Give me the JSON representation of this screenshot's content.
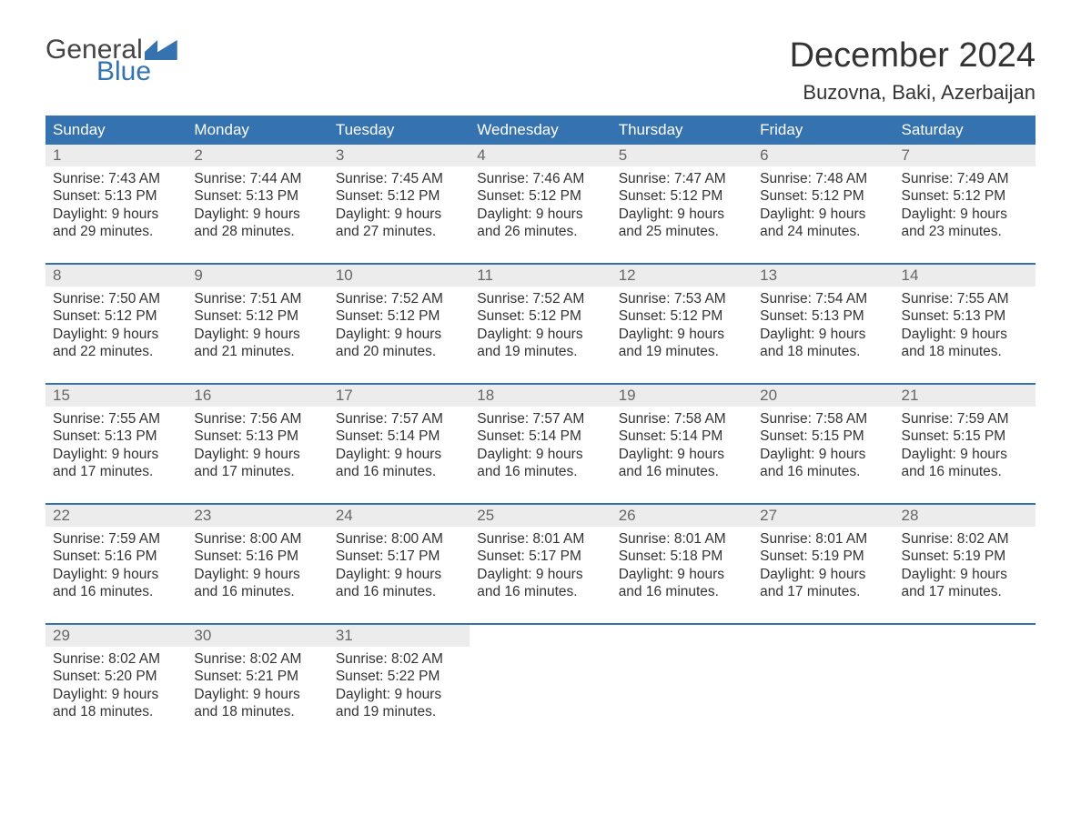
{
  "logo": {
    "word1": "General",
    "word2": "Blue"
  },
  "title": "December 2024",
  "location": "Buzovna, Baki, Azerbaijan",
  "colors": {
    "brand_blue": "#3572b0",
    "header_gray": "#ececec",
    "text": "#333333",
    "muted": "#666666",
    "white": "#ffffff"
  },
  "day_headers": [
    "Sunday",
    "Monday",
    "Tuesday",
    "Wednesday",
    "Thursday",
    "Friday",
    "Saturday"
  ],
  "weeks": [
    [
      {
        "n": "1",
        "sr": "Sunrise: 7:43 AM",
        "ss": "Sunset: 5:13 PM",
        "d1": "Daylight: 9 hours",
        "d2": "and 29 minutes."
      },
      {
        "n": "2",
        "sr": "Sunrise: 7:44 AM",
        "ss": "Sunset: 5:13 PM",
        "d1": "Daylight: 9 hours",
        "d2": "and 28 minutes."
      },
      {
        "n": "3",
        "sr": "Sunrise: 7:45 AM",
        "ss": "Sunset: 5:12 PM",
        "d1": "Daylight: 9 hours",
        "d2": "and 27 minutes."
      },
      {
        "n": "4",
        "sr": "Sunrise: 7:46 AM",
        "ss": "Sunset: 5:12 PM",
        "d1": "Daylight: 9 hours",
        "d2": "and 26 minutes."
      },
      {
        "n": "5",
        "sr": "Sunrise: 7:47 AM",
        "ss": "Sunset: 5:12 PM",
        "d1": "Daylight: 9 hours",
        "d2": "and 25 minutes."
      },
      {
        "n": "6",
        "sr": "Sunrise: 7:48 AM",
        "ss": "Sunset: 5:12 PM",
        "d1": "Daylight: 9 hours",
        "d2": "and 24 minutes."
      },
      {
        "n": "7",
        "sr": "Sunrise: 7:49 AM",
        "ss": "Sunset: 5:12 PM",
        "d1": "Daylight: 9 hours",
        "d2": "and 23 minutes."
      }
    ],
    [
      {
        "n": "8",
        "sr": "Sunrise: 7:50 AM",
        "ss": "Sunset: 5:12 PM",
        "d1": "Daylight: 9 hours",
        "d2": "and 22 minutes."
      },
      {
        "n": "9",
        "sr": "Sunrise: 7:51 AM",
        "ss": "Sunset: 5:12 PM",
        "d1": "Daylight: 9 hours",
        "d2": "and 21 minutes."
      },
      {
        "n": "10",
        "sr": "Sunrise: 7:52 AM",
        "ss": "Sunset: 5:12 PM",
        "d1": "Daylight: 9 hours",
        "d2": "and 20 minutes."
      },
      {
        "n": "11",
        "sr": "Sunrise: 7:52 AM",
        "ss": "Sunset: 5:12 PM",
        "d1": "Daylight: 9 hours",
        "d2": "and 19 minutes."
      },
      {
        "n": "12",
        "sr": "Sunrise: 7:53 AM",
        "ss": "Sunset: 5:12 PM",
        "d1": "Daylight: 9 hours",
        "d2": "and 19 minutes."
      },
      {
        "n": "13",
        "sr": "Sunrise: 7:54 AM",
        "ss": "Sunset: 5:13 PM",
        "d1": "Daylight: 9 hours",
        "d2": "and 18 minutes."
      },
      {
        "n": "14",
        "sr": "Sunrise: 7:55 AM",
        "ss": "Sunset: 5:13 PM",
        "d1": "Daylight: 9 hours",
        "d2": "and 18 minutes."
      }
    ],
    [
      {
        "n": "15",
        "sr": "Sunrise: 7:55 AM",
        "ss": "Sunset: 5:13 PM",
        "d1": "Daylight: 9 hours",
        "d2": "and 17 minutes."
      },
      {
        "n": "16",
        "sr": "Sunrise: 7:56 AM",
        "ss": "Sunset: 5:13 PM",
        "d1": "Daylight: 9 hours",
        "d2": "and 17 minutes."
      },
      {
        "n": "17",
        "sr": "Sunrise: 7:57 AM",
        "ss": "Sunset: 5:14 PM",
        "d1": "Daylight: 9 hours",
        "d2": "and 16 minutes."
      },
      {
        "n": "18",
        "sr": "Sunrise: 7:57 AM",
        "ss": "Sunset: 5:14 PM",
        "d1": "Daylight: 9 hours",
        "d2": "and 16 minutes."
      },
      {
        "n": "19",
        "sr": "Sunrise: 7:58 AM",
        "ss": "Sunset: 5:14 PM",
        "d1": "Daylight: 9 hours",
        "d2": "and 16 minutes."
      },
      {
        "n": "20",
        "sr": "Sunrise: 7:58 AM",
        "ss": "Sunset: 5:15 PM",
        "d1": "Daylight: 9 hours",
        "d2": "and 16 minutes."
      },
      {
        "n": "21",
        "sr": "Sunrise: 7:59 AM",
        "ss": "Sunset: 5:15 PM",
        "d1": "Daylight: 9 hours",
        "d2": "and 16 minutes."
      }
    ],
    [
      {
        "n": "22",
        "sr": "Sunrise: 7:59 AM",
        "ss": "Sunset: 5:16 PM",
        "d1": "Daylight: 9 hours",
        "d2": "and 16 minutes."
      },
      {
        "n": "23",
        "sr": "Sunrise: 8:00 AM",
        "ss": "Sunset: 5:16 PM",
        "d1": "Daylight: 9 hours",
        "d2": "and 16 minutes."
      },
      {
        "n": "24",
        "sr": "Sunrise: 8:00 AM",
        "ss": "Sunset: 5:17 PM",
        "d1": "Daylight: 9 hours",
        "d2": "and 16 minutes."
      },
      {
        "n": "25",
        "sr": "Sunrise: 8:01 AM",
        "ss": "Sunset: 5:17 PM",
        "d1": "Daylight: 9 hours",
        "d2": "and 16 minutes."
      },
      {
        "n": "26",
        "sr": "Sunrise: 8:01 AM",
        "ss": "Sunset: 5:18 PM",
        "d1": "Daylight: 9 hours",
        "d2": "and 16 minutes."
      },
      {
        "n": "27",
        "sr": "Sunrise: 8:01 AM",
        "ss": "Sunset: 5:19 PM",
        "d1": "Daylight: 9 hours",
        "d2": "and 17 minutes."
      },
      {
        "n": "28",
        "sr": "Sunrise: 8:02 AM",
        "ss": "Sunset: 5:19 PM",
        "d1": "Daylight: 9 hours",
        "d2": "and 17 minutes."
      }
    ],
    [
      {
        "n": "29",
        "sr": "Sunrise: 8:02 AM",
        "ss": "Sunset: 5:20 PM",
        "d1": "Daylight: 9 hours",
        "d2": "and 18 minutes."
      },
      {
        "n": "30",
        "sr": "Sunrise: 8:02 AM",
        "ss": "Sunset: 5:21 PM",
        "d1": "Daylight: 9 hours",
        "d2": "and 18 minutes."
      },
      {
        "n": "31",
        "sr": "Sunrise: 8:02 AM",
        "ss": "Sunset: 5:22 PM",
        "d1": "Daylight: 9 hours",
        "d2": "and 19 minutes."
      },
      null,
      null,
      null,
      null
    ]
  ]
}
